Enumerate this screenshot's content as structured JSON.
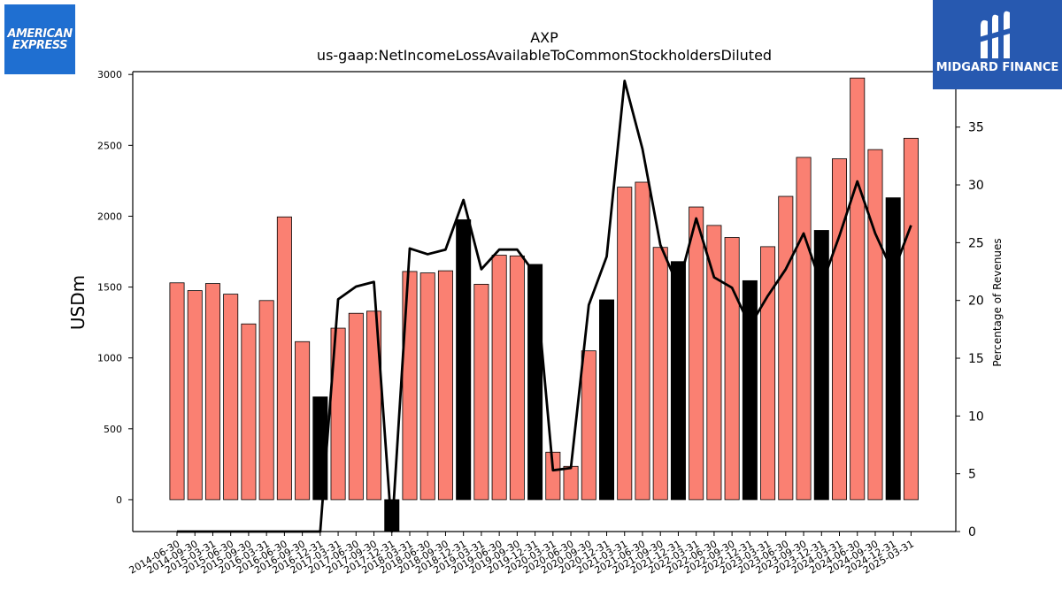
{
  "chart_data": {
    "type": "bar",
    "title": "AXP",
    "subtitle": "us-gaap:NetIncomeLossAvailableToCommonStockholdersDiluted",
    "ylabel": "USDm",
    "y2label": "Percentage of Revenues",
    "ylim": [
      -225,
      3020
    ],
    "y2lim": [
      0,
      39.8
    ],
    "yticks": [
      "0",
      "500",
      "1000",
      "1500",
      "2000",
      "2500",
      "3000"
    ],
    "y2ticks": [
      "0",
      "5",
      "10",
      "15",
      "20",
      "25",
      "30",
      "35"
    ],
    "categories": [
      "2014-06-30",
      "2014-09-30",
      "2015-03-31",
      "2015-06-30",
      "2015-09-30",
      "2016-03-31",
      "2016-06-30",
      "2016-09-30",
      "2016-12-31",
      "2017-03-31",
      "2017-06-30",
      "2017-09-30",
      "2017-12-31",
      "2018-03-31",
      "2018-06-30",
      "2018-09-30",
      "2018-12-31",
      "2019-03-31",
      "2019-06-30",
      "2019-09-30",
      "2019-12-31",
      "2020-03-31",
      "2020-06-30",
      "2020-09-30",
      "2020-12-31",
      "2021-03-31",
      "2021-06-30",
      "2021-09-30",
      "2021-12-31",
      "2022-03-31",
      "2022-06-30",
      "2022-09-30",
      "2022-12-31",
      "2023-03-31",
      "2023-06-30",
      "2023-09-30",
      "2023-12-31",
      "2024-03-31",
      "2024-06-30",
      "2024-09-30",
      "2024-12-31",
      "2025-03-31"
    ],
    "series": [
      {
        "type": "bar",
        "values": [
          1530,
          1475,
          1525,
          1450,
          1240,
          1405,
          1995,
          1115,
          725,
          1210,
          1315,
          1330,
          -225,
          1610,
          1600,
          1615,
          1975,
          1520,
          1725,
          1720,
          1660,
          335,
          235,
          1050,
          1410,
          2205,
          2240,
          1780,
          1680,
          2065,
          1935,
          1850,
          1545,
          1785,
          2140,
          2415,
          1900,
          2405,
          2975,
          2470,
          2130,
          2550
        ],
        "highlight": [
          false,
          false,
          false,
          false,
          false,
          false,
          false,
          false,
          true,
          false,
          false,
          false,
          true,
          false,
          false,
          false,
          true,
          false,
          false,
          false,
          true,
          false,
          false,
          false,
          true,
          false,
          false,
          false,
          true,
          false,
          false,
          false,
          true,
          false,
          false,
          false,
          true,
          false,
          false,
          false,
          true,
          false
        ]
      },
      {
        "type": "line",
        "axis": "secondary",
        "values": [
          0,
          0,
          0,
          0,
          0,
          0,
          0,
          0,
          0,
          20.1,
          21.2,
          21.6,
          0,
          24.5,
          24.0,
          24.4,
          28.7,
          22.7,
          24.4,
          24.4,
          22.3,
          5.3,
          5.5,
          19.6,
          23.8,
          39.0,
          33.1,
          24.8,
          21.2,
          27.1,
          22.0,
          21.1,
          17.8,
          20.4,
          22.7,
          25.8,
          21.3,
          25.6,
          30.3,
          25.8,
          22.4,
          26.5
        ]
      }
    ],
    "colors": {
      "bar": "#fa8072",
      "bar_highlight": "#000000",
      "line": "#000000"
    },
    "grid": false,
    "legend": "none"
  },
  "logos": {
    "left": {
      "line1": "AMERICAN",
      "line2": "EXPRESS",
      "color": "#1f6fd1"
    },
    "right": {
      "text": "MIDGARD FINANCE",
      "color": "#2759b0"
    }
  }
}
